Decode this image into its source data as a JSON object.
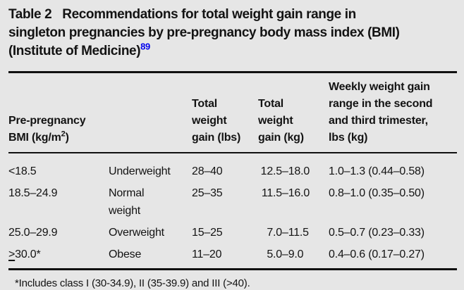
{
  "caption": {
    "label": "Table 2",
    "line1": "Recommendations for total weight gain range in",
    "line2": "singleton pregnancies by pre-pregnancy body mass index (BMI)",
    "line3": "(Institute of Medicine)",
    "reference": "89"
  },
  "table": {
    "headers": {
      "bmi_line1": "Pre-pregnancy",
      "bmi_line2_pre": "BMI (kg/m",
      "bmi_line2_sup": "2",
      "bmi_line2_post": ")",
      "category": "",
      "total_lbs": "Total weight gain (lbs)",
      "total_kg": "Total weight gain (kg)",
      "weekly": "Weekly weight gain range in the second and third trimester, lbs (kg)"
    },
    "dash": "–",
    "rows": [
      {
        "bmi": "<18.5",
        "category": "Underweight",
        "lbs": "28–40",
        "kg_lo": "12.5",
        "kg_hi": "18.0",
        "weekly": "1.0–1.3 (0.44–0.58)"
      },
      {
        "bmi": "18.5–24.9",
        "category": "Normal weight",
        "lbs": "25–35",
        "kg_lo": "11.5",
        "kg_hi": "16.0",
        "weekly": "0.8–1.0 (0.35–0.50)"
      },
      {
        "bmi": "25.0–29.9",
        "category": "Overweight",
        "lbs": "15–25",
        "kg_lo": "7.0",
        "kg_hi": "11.5",
        "weekly": "0.5–0.7 (0.23–0.33)"
      },
      {
        "bmi_symbol": ">",
        "bmi": "30.0*",
        "category": "Obese",
        "lbs": "11–20",
        "kg_lo": "5.0",
        "kg_hi": "9.0",
        "weekly": "0.4–0.6 (0.17–0.27)"
      }
    ]
  },
  "footnote": "*Includes class I (30-34.9), II (35-39.9) and III (>40)."
}
